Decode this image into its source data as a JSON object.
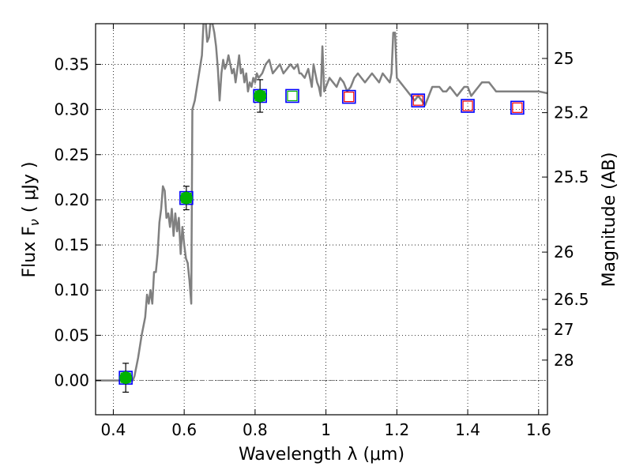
{
  "chart_data": {
    "type": "line",
    "xlabel": "Wavelength  λ (μm)",
    "ylabel": "Flux  F",
    "ylabel_sub": "ν",
    "ylabel_unit": "( μJy )",
    "y2label": "Magnitude (AB)",
    "xlim": [
      0.35,
      1.625
    ],
    "ylim": [
      -0.038,
      0.395
    ],
    "grid": true,
    "xticks": [
      {
        "value": 0.4,
        "label": "0.4"
      },
      {
        "value": 0.6,
        "label": "0.6"
      },
      {
        "value": 0.8,
        "label": "0.8"
      },
      {
        "value": 1.0,
        "label": "1"
      },
      {
        "value": 1.2,
        "label": "1.2"
      },
      {
        "value": 1.4,
        "label": "1.4"
      },
      {
        "value": 1.6,
        "label": "1.6"
      }
    ],
    "yticks": [
      {
        "value": 0.0,
        "label": "0.00"
      },
      {
        "value": 0.05,
        "label": "0.05"
      },
      {
        "value": 0.1,
        "label": "0.10"
      },
      {
        "value": 0.15,
        "label": "0.15"
      },
      {
        "value": 0.2,
        "label": "0.20"
      },
      {
        "value": 0.25,
        "label": "0.25"
      },
      {
        "value": 0.3,
        "label": "0.30"
      },
      {
        "value": 0.35,
        "label": "0.35"
      }
    ],
    "y2ticks": [
      {
        "flux": 0.3565,
        "label": "25"
      },
      {
        "flux": 0.2965,
        "label": "25.2"
      },
      {
        "flux": 0.2252,
        "label": "25.5"
      },
      {
        "flux": 0.1421,
        "label": "26"
      },
      {
        "flux": 0.0897,
        "label": "26.5"
      },
      {
        "flux": 0.0566,
        "label": "27"
      },
      {
        "flux": 0.0225,
        "label": "28"
      }
    ],
    "model_spectrum": {
      "color": "#808080",
      "points": [
        [
          0.35,
          0.0
        ],
        [
          0.455,
          0.0
        ],
        [
          0.46,
          0.005
        ],
        [
          0.47,
          0.025
        ],
        [
          0.48,
          0.05
        ],
        [
          0.49,
          0.07
        ],
        [
          0.495,
          0.095
        ],
        [
          0.5,
          0.085
        ],
        [
          0.505,
          0.1
        ],
        [
          0.51,
          0.085
        ],
        [
          0.515,
          0.12
        ],
        [
          0.52,
          0.12
        ],
        [
          0.525,
          0.14
        ],
        [
          0.53,
          0.175
        ],
        [
          0.535,
          0.19
        ],
        [
          0.54,
          0.215
        ],
        [
          0.545,
          0.21
        ],
        [
          0.55,
          0.18
        ],
        [
          0.555,
          0.185
        ],
        [
          0.56,
          0.17
        ],
        [
          0.565,
          0.19
        ],
        [
          0.57,
          0.16
        ],
        [
          0.575,
          0.185
        ],
        [
          0.58,
          0.165
        ],
        [
          0.585,
          0.18
        ],
        [
          0.59,
          0.14
        ],
        [
          0.595,
          0.17
        ],
        [
          0.6,
          0.15
        ],
        [
          0.605,
          0.135
        ],
        [
          0.61,
          0.13
        ],
        [
          0.615,
          0.11
        ],
        [
          0.62,
          0.085
        ],
        [
          0.623,
          0.3
        ],
        [
          0.63,
          0.31
        ],
        [
          0.64,
          0.335
        ],
        [
          0.65,
          0.36
        ],
        [
          0.655,
          0.4
        ],
        [
          0.66,
          0.4
        ],
        [
          0.665,
          0.375
        ],
        [
          0.67,
          0.38
        ],
        [
          0.675,
          0.4
        ],
        [
          0.68,
          0.395
        ],
        [
          0.685,
          0.385
        ],
        [
          0.69,
          0.37
        ],
        [
          0.695,
          0.345
        ],
        [
          0.7,
          0.31
        ],
        [
          0.705,
          0.34
        ],
        [
          0.71,
          0.355
        ],
        [
          0.715,
          0.345
        ],
        [
          0.72,
          0.35
        ],
        [
          0.725,
          0.36
        ],
        [
          0.73,
          0.35
        ],
        [
          0.735,
          0.34
        ],
        [
          0.74,
          0.345
        ],
        [
          0.745,
          0.33
        ],
        [
          0.75,
          0.345
        ],
        [
          0.755,
          0.36
        ],
        [
          0.76,
          0.34
        ],
        [
          0.765,
          0.345
        ],
        [
          0.77,
          0.33
        ],
        [
          0.775,
          0.34
        ],
        [
          0.78,
          0.32
        ],
        [
          0.785,
          0.33
        ],
        [
          0.79,
          0.325
        ],
        [
          0.795,
          0.335
        ],
        [
          0.8,
          0.33
        ],
        [
          0.805,
          0.34
        ],
        [
          0.81,
          0.335
        ],
        [
          0.82,
          0.34
        ],
        [
          0.83,
          0.35
        ],
        [
          0.84,
          0.355
        ],
        [
          0.85,
          0.34
        ],
        [
          0.86,
          0.345
        ],
        [
          0.87,
          0.35
        ],
        [
          0.88,
          0.34
        ],
        [
          0.89,
          0.345
        ],
        [
          0.9,
          0.35
        ],
        [
          0.91,
          0.345
        ],
        [
          0.92,
          0.35
        ],
        [
          0.925,
          0.34
        ],
        [
          0.93,
          0.34
        ],
        [
          0.94,
          0.335
        ],
        [
          0.95,
          0.345
        ],
        [
          0.96,
          0.325
        ],
        [
          0.965,
          0.35
        ],
        [
          0.97,
          0.34
        ],
        [
          0.975,
          0.33
        ],
        [
          0.98,
          0.325
        ],
        [
          0.985,
          0.315
        ],
        [
          0.99,
          0.37
        ],
        [
          0.995,
          0.32
        ],
        [
          1.0,
          0.325
        ],
        [
          1.01,
          0.335
        ],
        [
          1.02,
          0.33
        ],
        [
          1.03,
          0.325
        ],
        [
          1.04,
          0.335
        ],
        [
          1.05,
          0.33
        ],
        [
          1.06,
          0.32
        ],
        [
          1.07,
          0.325
        ],
        [
          1.08,
          0.335
        ],
        [
          1.09,
          0.34
        ],
        [
          1.1,
          0.335
        ],
        [
          1.11,
          0.33
        ],
        [
          1.12,
          0.335
        ],
        [
          1.13,
          0.34
        ],
        [
          1.14,
          0.335
        ],
        [
          1.15,
          0.33
        ],
        [
          1.16,
          0.34
        ],
        [
          1.17,
          0.335
        ],
        [
          1.18,
          0.33
        ],
        [
          1.185,
          0.34
        ],
        [
          1.19,
          0.385
        ],
        [
          1.195,
          0.385
        ],
        [
          1.2,
          0.335
        ],
        [
          1.21,
          0.33
        ],
        [
          1.22,
          0.325
        ],
        [
          1.23,
          0.32
        ],
        [
          1.24,
          0.315
        ],
        [
          1.25,
          0.31
        ],
        [
          1.26,
          0.315
        ],
        [
          1.27,
          0.31
        ],
        [
          1.28,
          0.305
        ],
        [
          1.29,
          0.315
        ],
        [
          1.3,
          0.325
        ],
        [
          1.31,
          0.325
        ],
        [
          1.32,
          0.325
        ],
        [
          1.33,
          0.32
        ],
        [
          1.34,
          0.32
        ],
        [
          1.35,
          0.325
        ],
        [
          1.36,
          0.32
        ],
        [
          1.37,
          0.315
        ],
        [
          1.38,
          0.32
        ],
        [
          1.39,
          0.325
        ],
        [
          1.4,
          0.325
        ],
        [
          1.41,
          0.315
        ],
        [
          1.42,
          0.32
        ],
        [
          1.43,
          0.325
        ],
        [
          1.44,
          0.33
        ],
        [
          1.45,
          0.33
        ],
        [
          1.46,
          0.33
        ],
        [
          1.47,
          0.325
        ],
        [
          1.48,
          0.32
        ],
        [
          1.49,
          0.32
        ],
        [
          1.5,
          0.32
        ],
        [
          1.52,
          0.32
        ],
        [
          1.54,
          0.32
        ],
        [
          1.56,
          0.32
        ],
        [
          1.58,
          0.32
        ],
        [
          1.6,
          0.32
        ],
        [
          1.625,
          0.318
        ]
      ]
    },
    "observed_points": {
      "color": "#00b400",
      "points": [
        {
          "x": 0.435,
          "y": 0.003,
          "yerr": 0.016
        },
        {
          "x": 0.606,
          "y": 0.202,
          "yerr": 0.013
        },
        {
          "x": 0.814,
          "y": 0.315,
          "yerr": 0.018
        }
      ]
    },
    "model_photometry": {
      "edge_color": "#0000ff",
      "points": [
        {
          "x": 0.435,
          "y": 0.003
        },
        {
          "x": 0.606,
          "y": 0.202
        },
        {
          "x": 0.814,
          "y": 0.315
        },
        {
          "x": 0.905,
          "y": 0.315
        },
        {
          "x": 1.065,
          "y": 0.314
        },
        {
          "x": 1.26,
          "y": 0.31
        },
        {
          "x": 1.4,
          "y": 0.304
        },
        {
          "x": 1.54,
          "y": 0.302
        }
      ]
    },
    "upper_limits": {
      "colors": [
        "#00b400",
        "#00b400",
        "#00b400",
        "#00b400",
        "#ff0000",
        "#ff0000",
        "#ff0000",
        "#ff0000"
      ],
      "points": [
        {
          "x": 0.435,
          "y": 0.003
        },
        {
          "x": 0.606,
          "y": 0.202
        },
        {
          "x": 0.814,
          "y": 0.315
        },
        {
          "x": 0.905,
          "y": 0.315
        },
        {
          "x": 1.065,
          "y": 0.314
        },
        {
          "x": 1.26,
          "y": 0.31
        },
        {
          "x": 1.4,
          "y": 0.304
        },
        {
          "x": 1.54,
          "y": 0.302
        }
      ]
    },
    "zero_line": {
      "y": 0.0,
      "color": "#808080"
    }
  }
}
